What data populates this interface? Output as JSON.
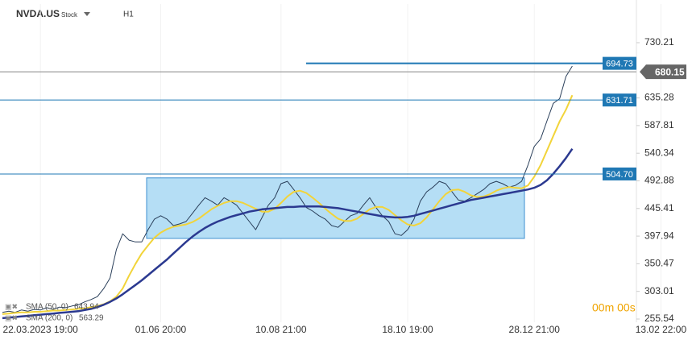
{
  "chart_data": {
    "type": "line",
    "symbol": "NVDA.US",
    "instrument_type": "Stock",
    "interval": "H1",
    "timer": "00m 00s",
    "categories": [
      null,
      null,
      null,
      null,
      null,
      null,
      "22.03.2023 19:00",
      null,
      null,
      null,
      null,
      null,
      null,
      null,
      null,
      null,
      null,
      null,
      null,
      null,
      null,
      null,
      null,
      null,
      null,
      "01.06 20:00",
      null,
      null,
      null,
      null,
      null,
      null,
      null,
      null,
      null,
      null,
      null,
      null,
      null,
      null,
      null,
      null,
      null,
      null,
      "10.08 21:00",
      null,
      null,
      null,
      null,
      null,
      null,
      null,
      null,
      null,
      null,
      null,
      null,
      null,
      null,
      null,
      null,
      null,
      null,
      null,
      "18.10 19:00",
      null,
      null,
      null,
      null,
      null,
      null,
      null,
      null,
      null,
      null,
      null,
      null,
      null,
      null,
      null,
      null,
      null,
      null,
      null,
      "28.12 21:00",
      null,
      null,
      null,
      null,
      null,
      null,
      null,
      null,
      null,
      null,
      null,
      null,
      null,
      null,
      null,
      null,
      null,
      null,
      null,
      "13.02 22:00"
    ],
    "series": [
      {
        "name": "NVDA.US",
        "color": "#2a3f5a",
        "width": 1,
        "values": [
          267,
          269,
          267,
          271,
          269,
          272,
          271,
          275,
          272,
          276,
          275,
          278,
          280,
          285,
          289,
          294,
          308,
          326,
          375,
          402,
          391,
          388,
          388,
          409,
          427,
          433,
          427,
          416,
          419,
          423,
          437,
          451,
          464,
          458,
          451,
          464,
          458,
          451,
          437,
          423,
          409,
          430,
          451,
          464,
          488,
          492,
          478,
          464,
          447,
          441,
          433,
          427,
          416,
          413,
          423,
          433,
          437,
          451,
          464,
          447,
          433,
          423,
          402,
          399,
          409,
          427,
          458,
          474,
          482,
          492,
          488,
          474,
          460,
          458,
          464,
          471,
          478,
          488,
          492,
          488,
          482,
          485,
          492,
          520,
          552,
          565,
          596,
          626,
          634,
          672,
          690,
          null,
          null,
          null,
          null,
          null,
          null,
          null,
          null,
          null,
          null,
          null,
          null,
          null,
          null
        ]
      },
      {
        "name": "SMA (50, 0)",
        "color": "#f2d43a",
        "width": 2,
        "last_label": "643.94",
        "values": [
          264,
          265,
          266,
          267,
          267,
          268,
          268,
          269,
          270,
          270,
          271,
          272,
          273,
          274,
          276,
          278,
          281,
          286,
          294,
          308,
          330,
          350,
          368,
          382,
          395,
          404,
          410,
          414,
          416,
          418,
          422,
          428,
          436,
          444,
          450,
          455,
          458,
          458,
          455,
          450,
          445,
          440,
          440,
          445,
          455,
          466,
          474,
          476,
          472,
          464,
          455,
          445,
          436,
          428,
          424,
          424,
          428,
          436,
          444,
          448,
          448,
          443,
          434,
          425,
          418,
          416,
          420,
          430,
          444,
          458,
          470,
          477,
          478,
          474,
          468,
          465,
          466,
          470,
          476,
          480,
          482,
          481,
          480,
          485,
          500,
          520,
          545,
          570,
          595,
          615,
          640,
          null,
          null,
          null,
          null,
          null,
          null,
          null,
          null,
          null,
          null,
          null,
          null,
          null,
          null
        ]
      },
      {
        "name": "SMA (200, 0)",
        "color": "#2b3990",
        "width": 2.5,
        "last_label": "563.29",
        "values": [
          257,
          258,
          259,
          260,
          261,
          262,
          263,
          264,
          265,
          266,
          267,
          268,
          269,
          271,
          273,
          276,
          280,
          285,
          291,
          298,
          306,
          314,
          322,
          331,
          340,
          349,
          358,
          368,
          378,
          388,
          397,
          405,
          412,
          418,
          423,
          427,
          431,
          434,
          437,
          440,
          442,
          444,
          445,
          446,
          447,
          448,
          448,
          449,
          449,
          449,
          449,
          448,
          447,
          446,
          444,
          442,
          440,
          438,
          436,
          434,
          432,
          431,
          430,
          430,
          431,
          433,
          436,
          439,
          442,
          445,
          448,
          451,
          454,
          457,
          460,
          462,
          464,
          466,
          468,
          470,
          472,
          474,
          476,
          478,
          481,
          486,
          494,
          505,
          518,
          532,
          548,
          null,
          null,
          null,
          null,
          null,
          null,
          null,
          null,
          null,
          null,
          null,
          null,
          null,
          null
        ]
      }
    ],
    "ylim": [
      250,
      796.6
    ],
    "yticks": [
      255.54,
      303.01,
      350.47,
      397.94,
      445.41,
      492.88,
      540.34,
      587.81,
      635.28,
      730.21
    ],
    "hlines": [
      {
        "value": 694.73,
        "color": "#1f78b4"
      },
      {
        "value": 631.71,
        "color": "#1f78b4"
      },
      {
        "value": 504.7,
        "label": "504.70",
        "color": "#1f78b4"
      },
      {
        "value": 680.15,
        "color": "#888888",
        "style": "price"
      }
    ],
    "zone": {
      "y": [
        394,
        498
      ],
      "color": "#b5def5",
      "stroke": "#3d8fd1"
    }
  }
}
